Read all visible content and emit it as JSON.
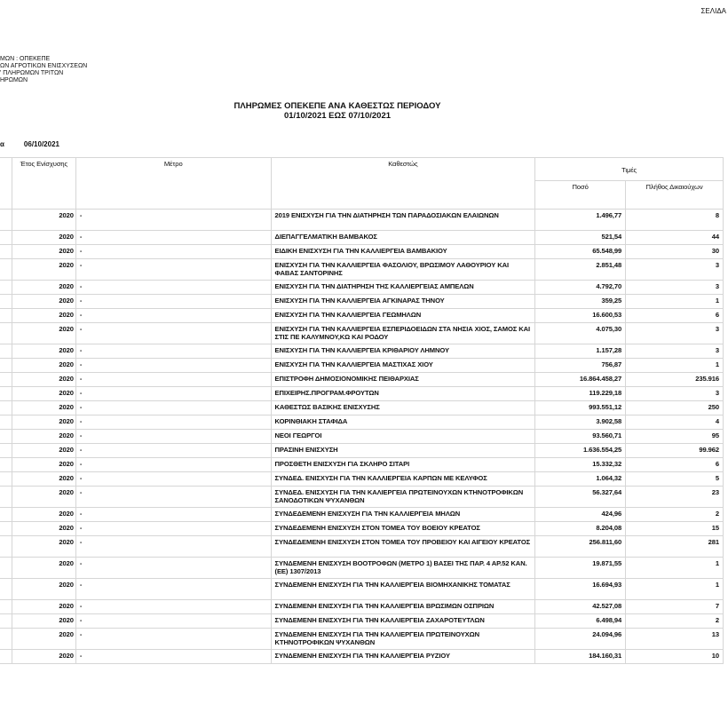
{
  "page_label": "ΣΕΛΙΔΑ",
  "org_lines": [
    "ΜΩΝ : ΟΠΕΚΕΠΕ",
    "ΩΝ ΑΓΡΟΤΙΚΩΝ ΕΝΙΣΧΥΣΕΩΝ",
    "' ΠΛΗΡΩΜΩΝ ΤΡΙΤΩΝ",
    "ΗΡΩΜΩΝ"
  ],
  "title": "ΠΛΗΡΩΜΕΣ ΟΠΕΚΕΠΕ ΑΝΑ ΚΑΘΕΣΤΩΣ ΠΕΡΙΟΔΟΥ",
  "period": "01/10/2021 ΕΩΣ 07/10/2021",
  "date_label": "α",
  "date_value": "06/10/2021",
  "columns": {
    "year": "Έτος Ενίσχυσης",
    "measure": "Μέτρο",
    "scheme": "Καθεστώς",
    "values": "Τιμές",
    "amount": "Ποσό",
    "count": "Πλήθος Δικαιούχων"
  },
  "rows": [
    {
      "year": "2020",
      "measure": "-",
      "scheme": "2019   ΕΝΙΣΧΥΣΗ ΓΙΑ ΤΗΝ ΔΙΑΤΗΡΗΣΗ ΤΩΝ ΠΑΡΑΔΟΣΙΑΚΩΝ ΕΛΑΙΩΝΩΝ",
      "amount": "1.496,77",
      "count": "8"
    },
    {
      "year": "2020",
      "measure": "-",
      "scheme": "ΔΙΕΠΑΓΓΕΛΜΑΤΙΚΗ ΒΑΜΒΑΚΟΣ",
      "amount": "521,54",
      "count": "44"
    },
    {
      "year": "2020",
      "measure": "-",
      "scheme": "ΕΙΔΙΚΗ ΕΝΙΣΧΥΣΗ ΓΙΑ ΤΗΝ ΚΑΛΛΙΕΡΓΕΙΑ ΒΑΜΒΑΚΙΟΥ",
      "amount": "65.548,99",
      "count": "30"
    },
    {
      "year": "2020",
      "measure": "-",
      "scheme": "ΕΝΙΣΧΥΣΗ ΓΙΑ ΤΗΝ  ΚΑΛΛΙΕΡΓΕΙΑ ΦΑΣΟΛΙΟΥ, ΒΡΩΣΙΜΟΥ ΛΑΘΟΥΡΙΟΥ ΚΑΙ ΦΑΒΑΣ ΣΑΝΤΟΡΙΝΗΣ",
      "amount": "2.851,48",
      "count": "3"
    },
    {
      "year": "2020",
      "measure": "-",
      "scheme": "ΕΝΙΣΧΥΣΗ ΓΙΑ ΤΗΝ ΔΙΑΤΗΡΗΣΗ ΤΗΣ ΚΑΛΛΙΕΡΓΕΙΑΣ  ΑΜΠΕΛΩΝ",
      "amount": "4.792,70",
      "count": "3"
    },
    {
      "year": "2020",
      "measure": "-",
      "scheme": "ΕΝΙΣΧΥΣΗ ΓΙΑ ΤΗΝ ΚΑΛΛΙΕΡΓΕΙΑ ΑΓΚΙΝΑΡΑΣ ΤΗΝΟΥ",
      "amount": "359,25",
      "count": "1"
    },
    {
      "year": "2020",
      "measure": "-",
      "scheme": "ΕΝΙΣΧΥΣΗ ΓΙΑ ΤΗΝ ΚΑΛΛΙΕΡΓΕΙΑ ΓΕΩΜΗΛΩΝ",
      "amount": "16.600,53",
      "count": "6"
    },
    {
      "year": "2020",
      "measure": "-",
      "scheme": "ΕΝΙΣΧΥΣΗ ΓΙΑ ΤΗΝ ΚΑΛΛΙΕΡΓΕΙΑ ΕΣΠΕΡΙΔΟΕΙΔΩΝ ΣΤΑ ΝΗΣΙΑ ΧΙΟΣ, ΣΑΜΟΣ ΚΑΙ ΣΤΙΣ ΠΕ ΚΑΛΥΜΝΟΥ,ΚΩ ΚΑΙ ΡΟΔΟΥ",
      "amount": "4.075,30",
      "count": "3"
    },
    {
      "year": "2020",
      "measure": "-",
      "scheme": "ΕΝΙΣΧΥΣΗ ΓΙΑ ΤΗΝ ΚΑΛΛΙΕΡΓΕΙΑ ΚΡΙΘΑΡΙΟΥ ΛΗΜΝΟΥ",
      "amount": "1.157,28",
      "count": "3"
    },
    {
      "year": "2020",
      "measure": "-",
      "scheme": "ΕΝΙΣΧΥΣΗ ΓΙΑ ΤΗΝ ΚΑΛΛΙΕΡΓΕΙΑ ΜΑΣΤΙΧΑΣ ΧΙΟΥ",
      "amount": "756,87",
      "count": "1"
    },
    {
      "year": "2020",
      "measure": "-",
      "scheme": "ΕΠΙΣΤΡΟΦΗ ΔΗΜΟΣΙΟΝΟΜΙΚΗΣ ΠΕΙΘΑΡΧΙΑΣ",
      "amount": "16.864.458,27",
      "count": "235.916"
    },
    {
      "year": "2020",
      "measure": "-",
      "scheme": "ΕΠΙΧΕΙΡΗΣ.ΠΡΟΓΡΑΜ.ΦΡΟΥΤΩΝ",
      "amount": "119.229,18",
      "count": "3"
    },
    {
      "year": "2020",
      "measure": "-",
      "scheme": "ΚΑΘΕΣΤΩΣ ΒΑΣΙΚΗΣ ΕΝΙΣΧΥΣΗΣ",
      "amount": "993.551,12",
      "count": "250"
    },
    {
      "year": "2020",
      "measure": "-",
      "scheme": "ΚΟΡΙΝΘΙΑΚΗ ΣΤΑΦΙΔΑ",
      "amount": "3.902,58",
      "count": "4"
    },
    {
      "year": "2020",
      "measure": "-",
      "scheme": "ΝΕΟΙ ΓΕΩΡΓΟΙ",
      "amount": "93.560,71",
      "count": "95"
    },
    {
      "year": "2020",
      "measure": "-",
      "scheme": "ΠΡΑΣΙΝΗ ΕΝΙΣΧΥΣΗ",
      "amount": "1.636.554,25",
      "count": "99.962"
    },
    {
      "year": "2020",
      "measure": "-",
      "scheme": "ΠΡΟΣΘΕΤΗ ΕΝΙΣΧΥΣΗ ΓΙΑ ΣΚΛΗΡΟ ΣΙΤΑΡΙ",
      "amount": "15.332,32",
      "count": "6"
    },
    {
      "year": "2020",
      "measure": "-",
      "scheme": "ΣΥΝΔΕΔ.  ΕΝΙΣΧΥΣΗ ΓΙΑ ΤΗΝ ΚΑΛΛΙΕΡΓΕΙΑ ΚΑΡΠΩΝ ΜΕ ΚΕΛΥΦΟΣ",
      "amount": "1.064,32",
      "count": "5"
    },
    {
      "year": "2020",
      "measure": "-",
      "scheme": "ΣΥΝΔΕΔ. ΕΝΙΣΧΥΣΗ ΓΙΑ ΤΗΝ ΚΑΛΙΕΡΓΕΙΑ ΠΡΩΤΕΙΝΟΥΧΩΝ ΚΤΗΝΟΤΡΟΦΙΚΩΝ ΣΑΝΟΔΟΤΙΚΩΝ ΨΥΧΑΝΘΩΝ",
      "amount": "56.327,64",
      "count": "23"
    },
    {
      "year": "2020",
      "measure": "-",
      "scheme": "ΣΥΝΔΕΔΕΜΕΝΗ ΕΝΙΣΧΥΣΗ ΓΙΑ ΤΗΝ ΚΑΛΛΙΕΡΓΕΙΑ ΜΗΛΩΝ",
      "amount": "424,96",
      "count": "2"
    },
    {
      "year": "2020",
      "measure": "-",
      "scheme": "ΣΥΝΔΕΔΕΜΕΝΗ ΕΝΙΣΧΥΣΗ ΣΤΟΝ ΤΟΜΕΑ ΤΟΥ ΒΟΕΙΟΥ ΚΡΕΑΤΟΣ",
      "amount": "8.204,08",
      "count": "15"
    },
    {
      "year": "2020",
      "measure": "-",
      "scheme": "ΣΥΝΔΕΔΕΜΕΝΗ ΕΝΙΣΧΥΣΗ ΣΤΟΝ ΤΟΜΕΑ ΤΟΥ ΠΡΟΒΕΙΟΥ ΚΑΙ ΑΙΓΕΙΟΥ ΚΡΕΑΤΟΣ",
      "amount": "256.811,60",
      "count": "281"
    },
    {
      "year": "2020",
      "measure": "-",
      "scheme": "ΣΥΝΔΕΜΕΝΗ ΕΝΙΣΧΥΣΗ ΒΟΟΤΡΟΦΩΝ (ΜΕΤΡΟ 1) ΒΑΣΕΙ ΤΗΣ ΠΑΡ. 4 ΑΡ.52 ΚΑΝ.(ΕΕ) 1307/2013",
      "amount": "19.871,55",
      "count": "1"
    },
    {
      "year": "2020",
      "measure": "-",
      "scheme": "ΣΥΝΔΕΜΕΝΗ ΕΝΙΣΧΥΣΗ ΓΙΑ ΤΗΝ ΚΑΛΛΙΕΡΓΕΙΑ ΒΙΟΜΗΧΑΝΙΚΗΣ ΤΟΜΑΤΑΣ",
      "amount": "16.694,93",
      "count": "1"
    },
    {
      "year": "2020",
      "measure": "-",
      "scheme": "ΣΥΝΔΕΜΕΝΗ ΕΝΙΣΧΥΣΗ ΓΙΑ ΤΗΝ ΚΑΛΛΙΕΡΓΕΙΑ ΒΡΩΣΙΜΩΝ ΟΣΠΡΙΩΝ",
      "amount": "42.527,08",
      "count": "7"
    },
    {
      "year": "2020",
      "measure": "-",
      "scheme": "ΣΥΝΔΕΜΕΝΗ ΕΝΙΣΧΥΣΗ ΓΙΑ ΤΗΝ ΚΑΛΛΙΕΡΓΕΙΑ ΖΑΧΑΡΟΤΕΥΤΛΩΝ",
      "amount": "6.498,94",
      "count": "2"
    },
    {
      "year": "2020",
      "measure": "-",
      "scheme": "ΣΥΝΔΕΜΕΝΗ ΕΝΙΣΧΥΣΗ ΓΙΑ ΤΗΝ ΚΑΛΛΙΕΡΓΕΙΑ ΠΡΩΤΕΙΝΟΥΧΩΝ ΚΤΗΝΟΤΡΟΦΙΚΩΝ ΨΥΧΑΝΘΩΝ",
      "amount": "24.094,96",
      "count": "13"
    },
    {
      "year": "2020",
      "measure": "-",
      "scheme": "ΣΥΝΔΕΜΕΝΗ ΕΝΙΣΧΥΣΗ ΓΙΑ ΤΗΝ ΚΑΛΛΙΕΡΓΕΙΑ ΡΥΖΙΟΥ",
      "amount": "184.160,31",
      "count": "10"
    }
  ]
}
